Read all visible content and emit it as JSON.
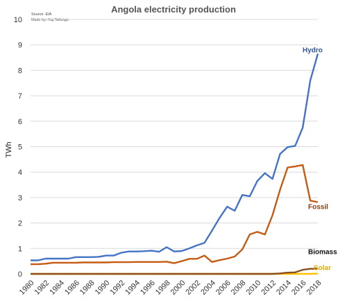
{
  "chart_data": {
    "type": "line",
    "title": "Angola electricity production",
    "source_lines": [
      "Source: EIA",
      "Made by: Kaj Tallungs"
    ],
    "xlabel": "",
    "ylabel": "TWh",
    "xlim": [
      1980,
      2018
    ],
    "ylim": [
      0,
      10
    ],
    "yticks": [
      0,
      1,
      2,
      3,
      4,
      5,
      6,
      7,
      8,
      9,
      10
    ],
    "xticks": [
      1980,
      1982,
      1984,
      1986,
      1988,
      1990,
      1992,
      1994,
      1996,
      1998,
      2000,
      2002,
      2004,
      2006,
      2008,
      2010,
      2012,
      2014,
      2016,
      2018
    ],
    "grid": "horizontal",
    "legend": "labels at line ends",
    "x": [
      1980,
      1981,
      1982,
      1983,
      1984,
      1985,
      1986,
      1987,
      1988,
      1989,
      1990,
      1991,
      1992,
      1993,
      1994,
      1995,
      1996,
      1997,
      1998,
      1999,
      2000,
      2001,
      2002,
      2003,
      2004,
      2005,
      2006,
      2007,
      2008,
      2009,
      2010,
      2011,
      2012,
      2013,
      2014,
      2015,
      2016,
      2017,
      2018
    ],
    "series": [
      {
        "name": "Hydro",
        "color": "#4472c4",
        "values": [
          0.53,
          0.53,
          0.6,
          0.6,
          0.6,
          0.6,
          0.66,
          0.66,
          0.66,
          0.67,
          0.72,
          0.72,
          0.83,
          0.88,
          0.88,
          0.89,
          0.91,
          0.87,
          1.05,
          0.88,
          0.9,
          1.0,
          1.12,
          1.22,
          1.7,
          2.2,
          2.64,
          2.48,
          3.1,
          3.05,
          3.65,
          3.96,
          3.73,
          4.71,
          4.98,
          5.03,
          5.75,
          7.6,
          8.65
        ]
      },
      {
        "name": "Fossil",
        "color": "#c55a11",
        "values": [
          0.38,
          0.38,
          0.4,
          0.44,
          0.44,
          0.44,
          0.44,
          0.45,
          0.45,
          0.45,
          0.45,
          0.46,
          0.46,
          0.46,
          0.47,
          0.47,
          0.47,
          0.47,
          0.48,
          0.42,
          0.5,
          0.59,
          0.59,
          0.72,
          0.47,
          0.54,
          0.6,
          0.68,
          0.96,
          1.55,
          1.65,
          1.55,
          2.3,
          3.3,
          4.18,
          4.22,
          4.28,
          2.88,
          2.82
        ]
      },
      {
        "name": "Biomass",
        "color": "#8a4f1f",
        "values": [
          0,
          0,
          0,
          0,
          0,
          0,
          0,
          0,
          0,
          0,
          0,
          0,
          0,
          0,
          0,
          0,
          0,
          0,
          0,
          0,
          0,
          0,
          0,
          0,
          0,
          0,
          0,
          0,
          0,
          0,
          0,
          0,
          0,
          0.02,
          0.05,
          0.06,
          0.16,
          0.2,
          0.2
        ]
      },
      {
        "name": "Solar",
        "color": "#ffc000",
        "values": [
          0,
          0,
          0,
          0,
          0,
          0,
          0,
          0,
          0,
          0,
          0,
          0,
          0,
          0,
          0,
          0,
          0,
          0,
          0,
          0,
          0,
          0,
          0,
          0,
          0,
          0,
          0,
          0,
          0,
          0,
          0,
          0,
          0,
          0,
          0,
          0,
          0,
          0,
          0.01
        ]
      }
    ]
  }
}
